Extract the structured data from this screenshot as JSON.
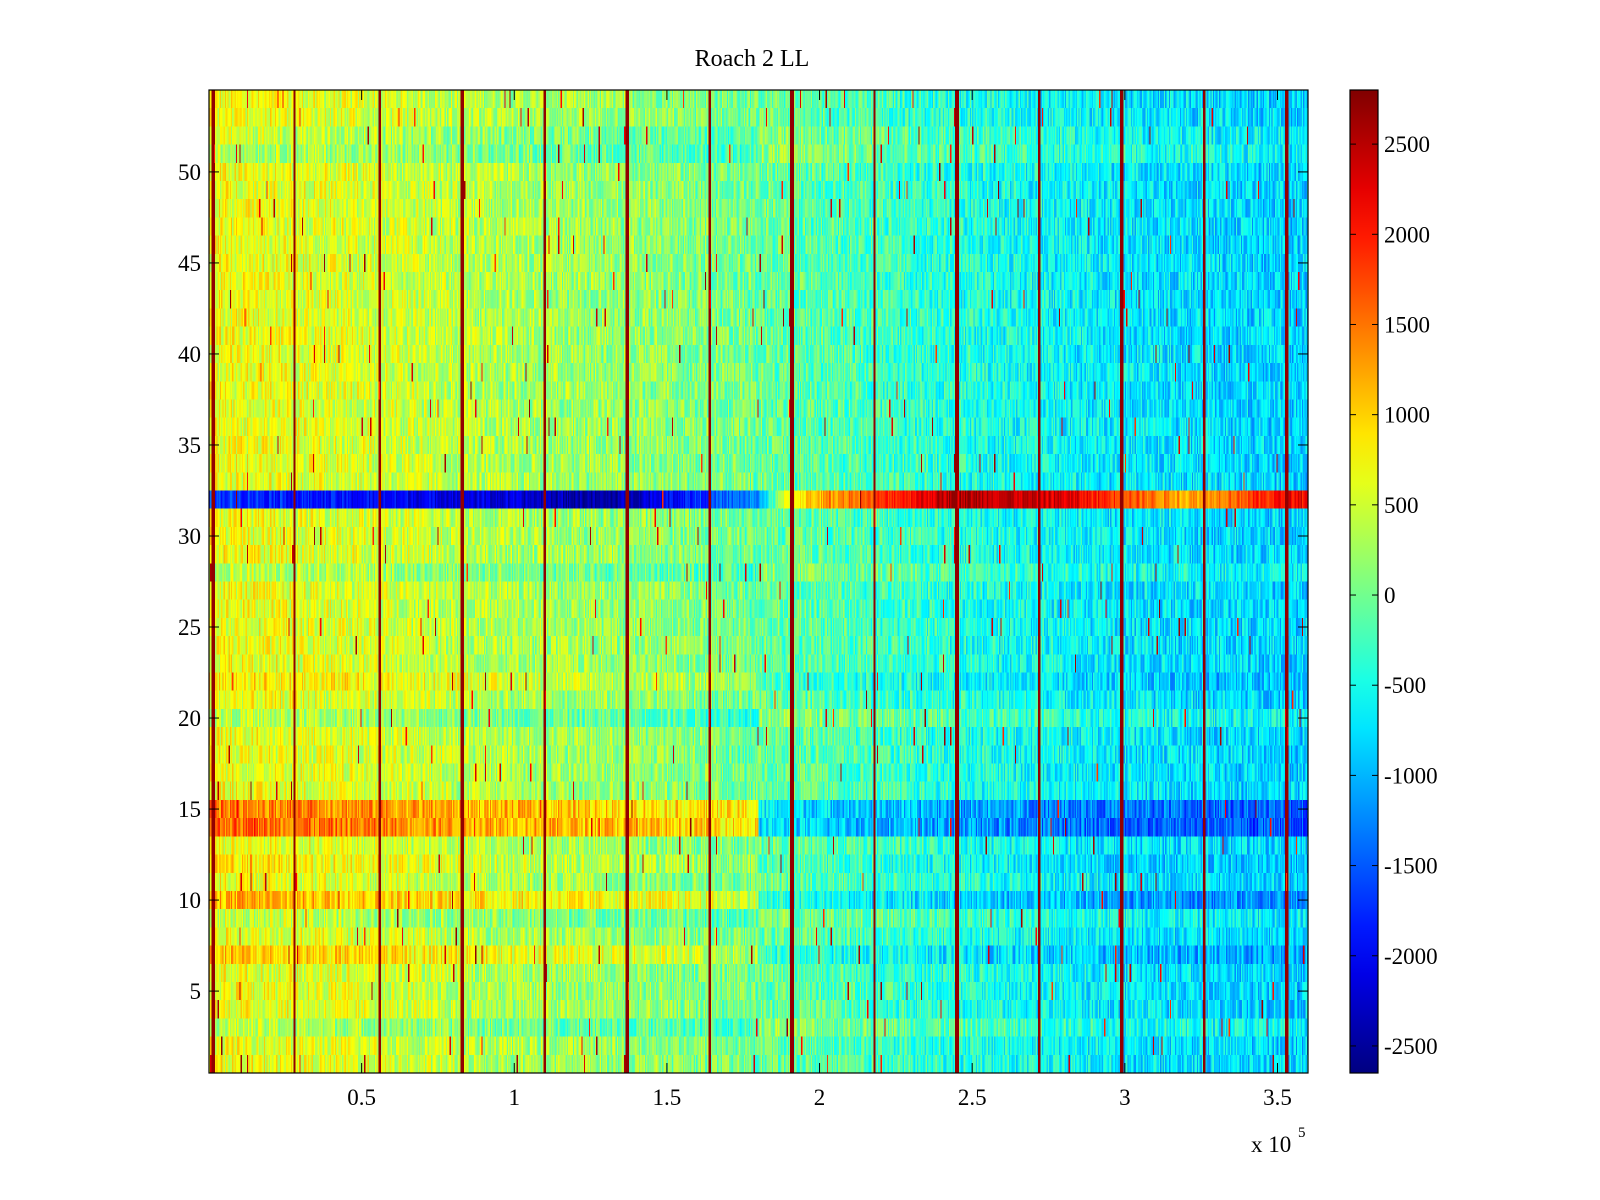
{
  "chart_data": {
    "type": "heatmap",
    "title": "Roach 2 LL",
    "xlabel": "",
    "ylabel": "",
    "x_range": [
      0,
      360000
    ],
    "y_range": [
      0.5,
      54.5
    ],
    "rows": 54,
    "x_exponent_label": {
      "base": "x 10",
      "exponent": "5"
    },
    "x_ticks": [
      {
        "value": 0.5,
        "label": "0.5"
      },
      {
        "value": 1,
        "label": "1"
      },
      {
        "value": 1.5,
        "label": "1.5"
      },
      {
        "value": 2,
        "label": "2"
      },
      {
        "value": 2.5,
        "label": "2.5"
      },
      {
        "value": 3,
        "label": "3"
      },
      {
        "value": 3.5,
        "label": "3.5"
      }
    ],
    "y_ticks": [
      {
        "value": 5,
        "label": "5"
      },
      {
        "value": 10,
        "label": "10"
      },
      {
        "value": 15,
        "label": "15"
      },
      {
        "value": 20,
        "label": "20"
      },
      {
        "value": 25,
        "label": "25"
      },
      {
        "value": 30,
        "label": "30"
      },
      {
        "value": 35,
        "label": "35"
      },
      {
        "value": 40,
        "label": "40"
      },
      {
        "value": 45,
        "label": "45"
      },
      {
        "value": 50,
        "label": "50"
      }
    ],
    "colorbar": {
      "colormap": "jet",
      "range": [
        -2650,
        2800
      ],
      "ticks": [
        {
          "value": 2500,
          "label": "2500"
        },
        {
          "value": 2000,
          "label": "2000"
        },
        {
          "value": 1500,
          "label": "1500"
        },
        {
          "value": 1000,
          "label": "1000"
        },
        {
          "value": 500,
          "label": "500"
        },
        {
          "value": 0,
          "label": "0"
        },
        {
          "value": -500,
          "label": "-500"
        },
        {
          "value": -1000,
          "label": "-1000"
        },
        {
          "value": -1500,
          "label": "-1500"
        },
        {
          "value": -2000,
          "label": "-2000"
        },
        {
          "value": -2500,
          "label": "-2500"
        }
      ]
    },
    "description_values": {
      "column_trend": [
        {
          "x": 0,
          "value": 700
        },
        {
          "x": 50000,
          "value": 550
        },
        {
          "x": 100000,
          "value": 300
        },
        {
          "x": 150000,
          "value": 150
        },
        {
          "x": 200000,
          "value": -150
        },
        {
          "x": 250000,
          "value": -450
        },
        {
          "x": 300000,
          "value": -700
        },
        {
          "x": 360000,
          "value": -850
        }
      ],
      "row_offsets": [
        {
          "row": 3,
          "value": -300
        },
        {
          "row": 7,
          "value": 350
        },
        {
          "row": 9,
          "value": -200
        },
        {
          "row": 10,
          "value": 500
        },
        {
          "row": 12,
          "value": 150
        },
        {
          "row": 14,
          "value": 900
        },
        {
          "row": 15,
          "value": 800
        },
        {
          "row": 20,
          "value": -300
        },
        {
          "row": 22,
          "value": 200
        },
        {
          "row": 28,
          "value": -250
        },
        {
          "row": 51,
          "value": -300
        },
        {
          "row": 52,
          "value": -200
        }
      ],
      "special_row": {
        "row": 32,
        "profile": [
          {
            "x": 0,
            "value": -1600
          },
          {
            "x": 40000,
            "value": -1900
          },
          {
            "x": 100000,
            "value": -2200
          },
          {
            "x": 130000,
            "value": -2500
          },
          {
            "x": 180000,
            "value": -1200
          },
          {
            "x": 190000,
            "value": 800
          },
          {
            "x": 220000,
            "value": 1800
          },
          {
            "x": 245000,
            "value": 2600
          },
          {
            "x": 280000,
            "value": 2300
          },
          {
            "x": 320000,
            "value": 1200
          },
          {
            "x": 360000,
            "value": 2300
          }
        ]
      },
      "vertical_spike_columns_x": [
        1500,
        28000,
        56000,
        83000,
        110000,
        137000,
        164000,
        191000,
        218000,
        245000,
        272000,
        299000,
        326000,
        353000
      ]
    }
  }
}
